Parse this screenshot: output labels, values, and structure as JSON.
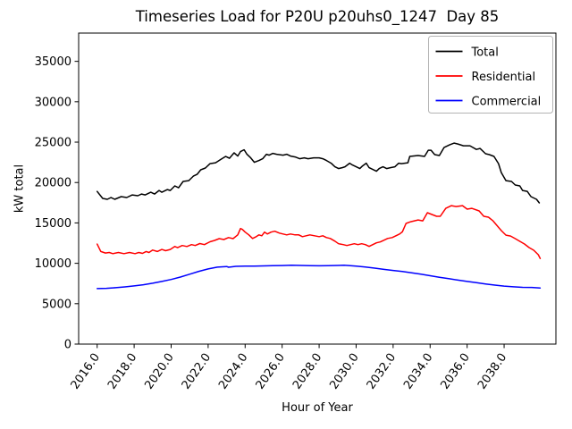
{
  "chart_data": {
    "type": "line",
    "title": "Timeseries Load for P20U p20uhs0_1247  Day 85",
    "xlabel": "Hour of Year",
    "ylabel": "kW total",
    "xlim": [
      2015.0,
      2040.8
    ],
    "ylim": [
      0,
      38500
    ],
    "grid": false,
    "xticks": {
      "values": [
        2016,
        2018,
        2020,
        2022,
        2024,
        2026,
        2028,
        2030,
        2032,
        2034,
        2036,
        2038
      ],
      "labels": [
        "2016.0",
        "2018.0",
        "2020.0",
        "2022.0",
        "2024.0",
        "2026.0",
        "2028.0",
        "2030.0",
        "2032.0",
        "2034.0",
        "2036.0",
        "2038.0"
      ]
    },
    "yticks": {
      "values": [
        0,
        5000,
        10000,
        15000,
        20000,
        25000,
        30000,
        35000
      ],
      "labels": [
        "0",
        "5000",
        "10000",
        "15000",
        "20000",
        "25000",
        "30000",
        "35000"
      ]
    },
    "legend": {
      "position": "upper right",
      "entries": [
        {
          "name": "Total",
          "color": "#000000"
        },
        {
          "name": "Residential",
          "color": "#ff0000"
        },
        {
          "name": "Commercial",
          "color": "#0000ff"
        }
      ]
    },
    "series": [
      {
        "name": "Total",
        "color": "#000000",
        "x": [
          2016.0,
          2016.3,
          2016.55,
          2016.75,
          2016.95,
          2017.3,
          2017.6,
          2017.9,
          2018.2,
          2018.4,
          2018.6,
          2018.9,
          2019.1,
          2019.35,
          2019.5,
          2019.8,
          2019.95,
          2020.2,
          2020.4,
          2020.65,
          2020.95,
          2021.2,
          2021.4,
          2021.6,
          2021.85,
          2022.1,
          2022.4,
          2022.7,
          2022.95,
          2023.15,
          2023.4,
          2023.6,
          2023.75,
          2023.95,
          2024.1,
          2024.3,
          2024.5,
          2024.75,
          2024.95,
          2025.15,
          2025.3,
          2025.5,
          2025.7,
          2026.05,
          2026.25,
          2026.45,
          2026.7,
          2026.95,
          2027.2,
          2027.4,
          2027.7,
          2028.0,
          2028.2,
          2028.4,
          2028.65,
          2028.85,
          2029.05,
          2029.25,
          2029.4,
          2029.65,
          2029.8,
          2030.0,
          2030.2,
          2030.35,
          2030.55,
          2030.7,
          2030.9,
          2031.1,
          2031.25,
          2031.45,
          2031.65,
          2031.85,
          2032.1,
          2032.3,
          2032.45,
          2032.8,
          2032.9,
          2033.35,
          2033.7,
          2033.9,
          2034.05,
          2034.25,
          2034.5,
          2034.75,
          2035.05,
          2035.3,
          2035.5,
          2035.8,
          2036.15,
          2036.5,
          2036.7,
          2037.0,
          2037.2,
          2037.45,
          2037.7,
          2037.85,
          2038.1,
          2038.4,
          2038.6,
          2038.85,
          2039.0,
          2039.25,
          2039.45,
          2039.75,
          2039.9
        ],
        "y": [
          18900,
          18030,
          17920,
          18140,
          17920,
          18250,
          18140,
          18470,
          18360,
          18580,
          18470,
          18800,
          18580,
          19020,
          18800,
          19130,
          19020,
          19580,
          19350,
          20130,
          20240,
          20790,
          21010,
          21570,
          21790,
          22340,
          22450,
          22890,
          23230,
          23000,
          23670,
          23280,
          23830,
          24050,
          23500,
          23060,
          22500,
          22720,
          22940,
          23500,
          23390,
          23610,
          23500,
          23390,
          23500,
          23280,
          23170,
          22940,
          23060,
          22940,
          23060,
          23060,
          22940,
          22720,
          22390,
          21950,
          21730,
          21840,
          21950,
          22390,
          22170,
          21950,
          21730,
          22060,
          22390,
          21840,
          21620,
          21400,
          21730,
          21950,
          21730,
          21840,
          21950,
          22390,
          22340,
          22450,
          23230,
          23340,
          23230,
          24000,
          24000,
          23450,
          23340,
          24330,
          24660,
          24880,
          24770,
          24550,
          24550,
          24100,
          24220,
          23560,
          23450,
          23230,
          22340,
          21230,
          20240,
          20130,
          19690,
          19580,
          19020,
          18910,
          18250,
          17920,
          17480
        ]
      },
      {
        "name": "Residential",
        "color": "#ff0000",
        "x": [
          2016.0,
          2016.2,
          2016.45,
          2016.65,
          2016.85,
          2017.15,
          2017.45,
          2017.75,
          2018.05,
          2018.25,
          2018.45,
          2018.65,
          2018.8,
          2019.0,
          2019.25,
          2019.5,
          2019.7,
          2019.95,
          2020.2,
          2020.35,
          2020.6,
          2020.85,
          2021.1,
          2021.3,
          2021.55,
          2021.8,
          2022.1,
          2022.35,
          2022.6,
          2022.85,
          2023.1,
          2023.35,
          2023.6,
          2023.75,
          2023.85,
          2024.0,
          2024.2,
          2024.4,
          2024.6,
          2024.75,
          2024.9,
          2025.05,
          2025.2,
          2025.4,
          2025.6,
          2025.85,
          2026.05,
          2026.25,
          2026.45,
          2026.7,
          2026.9,
          2027.1,
          2027.3,
          2027.5,
          2027.75,
          2028.0,
          2028.2,
          2028.4,
          2028.6,
          2028.85,
          2029.05,
          2029.3,
          2029.5,
          2029.7,
          2029.9,
          2030.1,
          2030.3,
          2030.5,
          2030.7,
          2030.9,
          2031.1,
          2031.3,
          2031.5,
          2031.7,
          2031.95,
          2032.15,
          2032.35,
          2032.5,
          2032.7,
          2032.95,
          2033.35,
          2033.6,
          2033.85,
          2034.1,
          2034.35,
          2034.55,
          2034.85,
          2035.15,
          2035.4,
          2035.75,
          2036.0,
          2036.25,
          2036.65,
          2036.9,
          2037.15,
          2037.4,
          2037.85,
          2038.1,
          2038.35,
          2038.6,
          2038.85,
          2039.1,
          2039.35,
          2039.6,
          2039.85,
          2039.95
        ],
        "y": [
          12380,
          11460,
          11270,
          11340,
          11200,
          11340,
          11200,
          11340,
          11200,
          11340,
          11230,
          11460,
          11340,
          11640,
          11460,
          11720,
          11560,
          11720,
          12080,
          11940,
          12200,
          12080,
          12310,
          12200,
          12450,
          12310,
          12670,
          12830,
          13050,
          12940,
          13190,
          13050,
          13520,
          14300,
          14190,
          13860,
          13520,
          13080,
          13300,
          13520,
          13410,
          13860,
          13630,
          13860,
          13970,
          13740,
          13630,
          13520,
          13630,
          13520,
          13520,
          13300,
          13410,
          13520,
          13410,
          13300,
          13410,
          13190,
          13080,
          12750,
          12420,
          12310,
          12200,
          12310,
          12420,
          12310,
          12420,
          12310,
          12090,
          12310,
          12530,
          12640,
          12860,
          13080,
          13190,
          13410,
          13630,
          13900,
          14930,
          15150,
          15370,
          15260,
          16260,
          16040,
          15820,
          15820,
          16810,
          17140,
          17030,
          17140,
          16700,
          16810,
          16480,
          15820,
          15710,
          15260,
          14050,
          13490,
          13380,
          13050,
          12720,
          12390,
          11950,
          11620,
          11060,
          10600
        ]
      },
      {
        "name": "Commercial",
        "color": "#0000ff",
        "x": [
          2016.0,
          2016.5,
          2017.0,
          2017.5,
          2018.0,
          2018.5,
          2019.0,
          2019.5,
          2020.0,
          2020.5,
          2021.0,
          2021.5,
          2022.0,
          2022.5,
          2023.0,
          2023.1,
          2023.5,
          2024.0,
          2024.5,
          2025.0,
          2025.5,
          2026.0,
          2026.5,
          2027.0,
          2027.5,
          2028.0,
          2028.5,
          2029.0,
          2029.35,
          2030.0,
          2030.5,
          2031.0,
          2031.5,
          2032.0,
          2032.5,
          2033.0,
          2033.5,
          2034.0,
          2034.5,
          2035.0,
          2035.5,
          2036.0,
          2036.5,
          2037.0,
          2037.5,
          2038.0,
          2038.5,
          2039.0,
          2039.5,
          2039.95
        ],
        "y": [
          6870,
          6900,
          6980,
          7080,
          7200,
          7350,
          7530,
          7750,
          8000,
          8300,
          8650,
          9000,
          9300,
          9520,
          9600,
          9510,
          9620,
          9650,
          9660,
          9680,
          9700,
          9720,
          9760,
          9740,
          9700,
          9690,
          9700,
          9740,
          9760,
          9650,
          9550,
          9400,
          9250,
          9120,
          8980,
          8820,
          8650,
          8460,
          8280,
          8100,
          7920,
          7760,
          7600,
          7450,
          7300,
          7180,
          7090,
          7020,
          7010,
          6950
        ]
      }
    ]
  }
}
